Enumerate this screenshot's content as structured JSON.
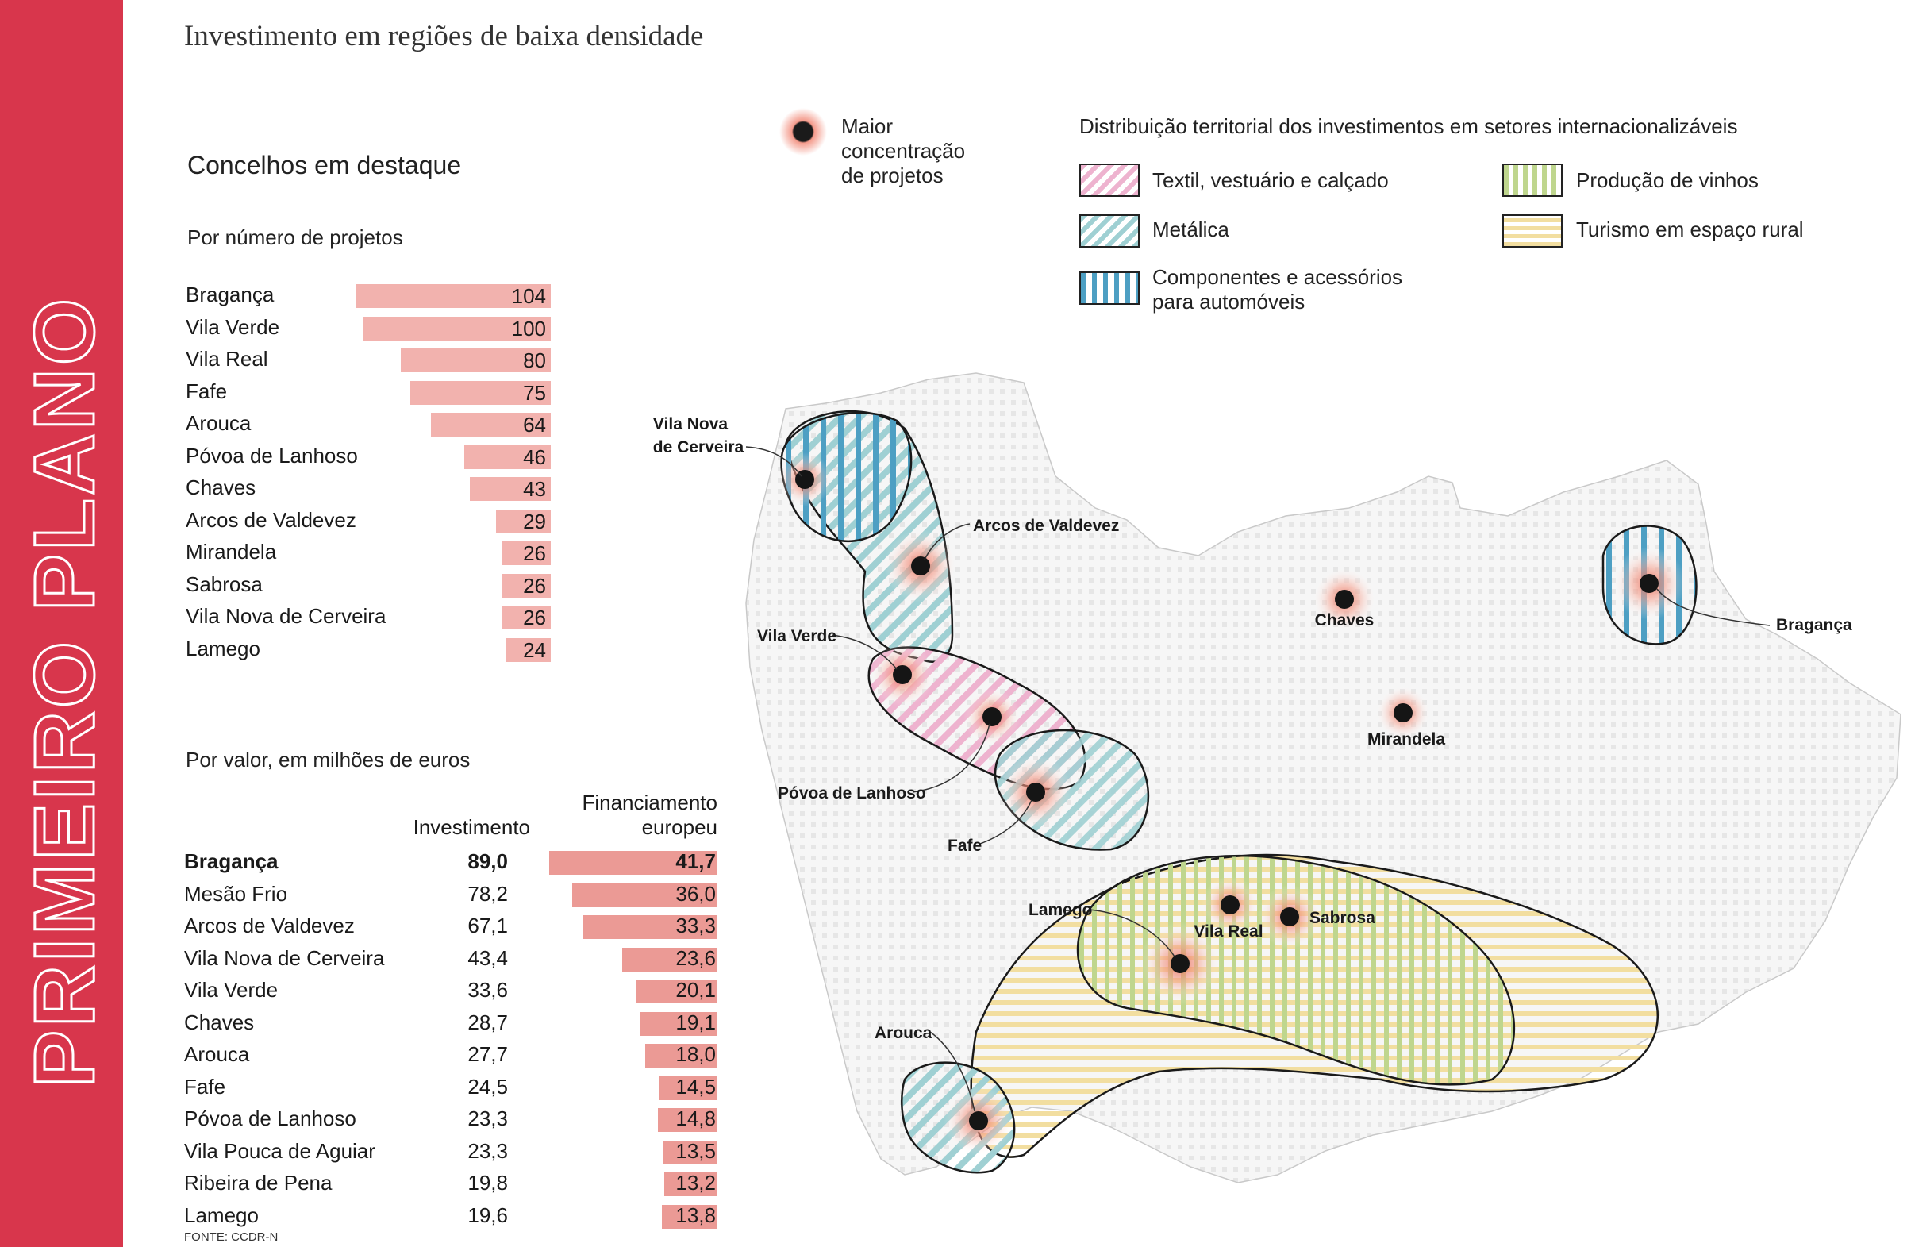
{
  "section_label": "PRIMEIRO PLANO",
  "title": "Investimento em regiões de baixa densidade",
  "left": {
    "heading": "Concelhos em destaque",
    "by_projects": {
      "subtitle": "Por número de projetos",
      "rows": [
        {
          "name": "Bragança",
          "value": 104
        },
        {
          "name": "Vila Verde",
          "value": 100
        },
        {
          "name": "Vila Real",
          "value": 80
        },
        {
          "name": "Fafe",
          "value": 75
        },
        {
          "name": "Arouca",
          "value": 64
        },
        {
          "name": "Póvoa de Lanhoso",
          "value": 46
        },
        {
          "name": "Chaves",
          "value": 43
        },
        {
          "name": "Arcos de Valdevez",
          "value": 29
        },
        {
          "name": "Mirandela",
          "value": 26
        },
        {
          "name": "Sabrosa",
          "value": 26
        },
        {
          "name": "Vila Nova de Cerveira",
          "value": 26
        },
        {
          "name": "Lamego",
          "value": 24
        }
      ]
    },
    "by_value": {
      "subtitle": "Por valor, em milhões de euros",
      "col_investment": "Investimento",
      "col_funding_line1": "Financiamento",
      "col_funding_line2": "europeu",
      "rows": [
        {
          "name": "Bragança",
          "investment": "89,0",
          "funding": "41,7",
          "funding_num": 41.7
        },
        {
          "name": "Mesão Frio",
          "investment": "78,2",
          "funding": "36,0",
          "funding_num": 36.0
        },
        {
          "name": "Arcos de Valdevez",
          "investment": "67,1",
          "funding": "33,3",
          "funding_num": 33.3
        },
        {
          "name": "Vila Nova de Cerveira",
          "investment": "43,4",
          "funding": "23,6",
          "funding_num": 23.6
        },
        {
          "name": "Vila Verde",
          "investment": "33,6",
          "funding": "20,1",
          "funding_num": 20.1
        },
        {
          "name": "Chaves",
          "investment": "28,7",
          "funding": "19,1",
          "funding_num": 19.1
        },
        {
          "name": "Arouca",
          "investment": "27,7",
          "funding": "18,0",
          "funding_num": 18.0
        },
        {
          "name": "Fafe",
          "investment": "24,5",
          "funding": "14,5",
          "funding_num": 14.5
        },
        {
          "name": "Póvoa de Lanhoso",
          "investment": "23,3",
          "funding": "14,8",
          "funding_num": 14.8
        },
        {
          "name": "Vila Pouca de Aguiar",
          "investment": "23,3",
          "funding": "13,5",
          "funding_num": 13.5
        },
        {
          "name": "Ribeira de Pena",
          "investment": "19,8",
          "funding": "13,2",
          "funding_num": 13.2
        },
        {
          "name": "Lamego",
          "investment": "19,6",
          "funding": "13,8",
          "funding_num": 13.8
        }
      ]
    },
    "source": "FONTE: CCDR-N"
  },
  "legend": {
    "concentration_line1": "Maior",
    "concentration_line2": "concentração",
    "concentration_line3": "de projetos",
    "sectors_title": "Distribuição territorial dos investimentos em setores internacionalizáveis",
    "textil": "Textil, vestuário e calçado",
    "metalica": "Metálica",
    "componentes_line1": "Componentes e acessórios",
    "componentes_line2": "para automóveis",
    "vinhos": "Produção de vinhos",
    "turismo": "Turismo em espaço rural"
  },
  "map": {
    "places": {
      "vila_nova_cerveira_1": "Vila Nova",
      "vila_nova_cerveira_2": "de Cerveira",
      "arcos_valdevez": "Arcos de Valdevez",
      "vila_verde": "Vila Verde",
      "povoa_lanhoso": "Póvoa de Lanhoso",
      "fafe": "Fafe",
      "chaves": "Chaves",
      "braganca": "Bragança",
      "mirandela": "Mirandela",
      "lamego": "Lamego",
      "vila_real": "Vila Real",
      "sabrosa": "Sabrosa",
      "arouca": "Arouca"
    },
    "colors": {
      "textil": "#eeb3cf",
      "metalica": "#9fd0d3",
      "componentes": "#4d9fc3",
      "vinhos": "#bfd68e",
      "turismo": "#f2dea0",
      "band": "#d8364c",
      "bars_projects": "#f2b2ae",
      "bars_funding": "#eb9a95"
    }
  }
}
